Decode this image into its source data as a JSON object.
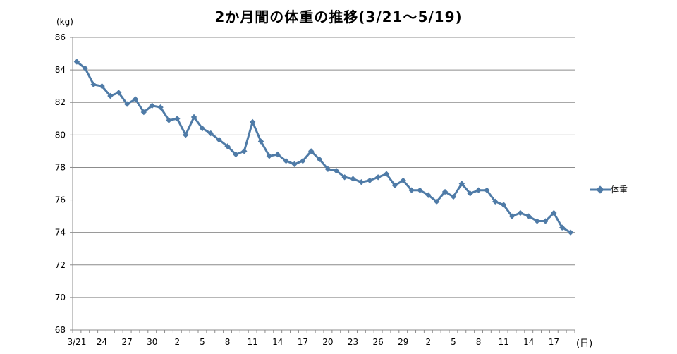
{
  "chart_data": {
    "type": "line",
    "title": "2か月間の体重の推移(3/21〜5/19)",
    "ylabel": "(kg)",
    "xlabel": "(日)",
    "ylim": [
      68,
      86
    ],
    "yticks": [
      68,
      70,
      72,
      74,
      76,
      78,
      80,
      82,
      84,
      86
    ],
    "grid": true,
    "legend_position": "right",
    "color": "#4F7BA7",
    "x_tick_labels": [
      {
        "index": 0,
        "label": "3/21"
      },
      {
        "index": 3,
        "label": "24"
      },
      {
        "index": 6,
        "label": "27"
      },
      {
        "index": 9,
        "label": "30"
      },
      {
        "index": 12,
        "label": "2"
      },
      {
        "index": 15,
        "label": "5"
      },
      {
        "index": 18,
        "label": "8"
      },
      {
        "index": 21,
        "label": "11"
      },
      {
        "index": 24,
        "label": "14"
      },
      {
        "index": 27,
        "label": "17"
      },
      {
        "index": 30,
        "label": "20"
      },
      {
        "index": 33,
        "label": "23"
      },
      {
        "index": 36,
        "label": "26"
      },
      {
        "index": 39,
        "label": "29"
      },
      {
        "index": 42,
        "label": "2"
      },
      {
        "index": 45,
        "label": "5"
      },
      {
        "index": 48,
        "label": "8"
      },
      {
        "index": 51,
        "label": "11"
      },
      {
        "index": 54,
        "label": "14"
      },
      {
        "index": 57,
        "label": "17"
      }
    ],
    "series": [
      {
        "name": "体重",
        "values": [
          84.5,
          84.1,
          83.1,
          83.0,
          82.4,
          82.6,
          81.9,
          82.2,
          81.4,
          81.8,
          81.7,
          80.9,
          81.0,
          80.0,
          81.1,
          80.4,
          80.1,
          79.7,
          79.3,
          78.8,
          79.0,
          80.8,
          79.6,
          78.7,
          78.8,
          78.4,
          78.2,
          78.4,
          79.0,
          78.5,
          77.9,
          77.8,
          77.4,
          77.3,
          77.1,
          77.2,
          77.4,
          77.6,
          76.9,
          77.2,
          76.6,
          76.6,
          76.3,
          75.9,
          76.5,
          76.2,
          77.0,
          76.4,
          76.6,
          76.6,
          75.9,
          75.7,
          75.0,
          75.2,
          75.0,
          74.7,
          74.7,
          75.2,
          74.3,
          74.0
        ]
      }
    ]
  }
}
